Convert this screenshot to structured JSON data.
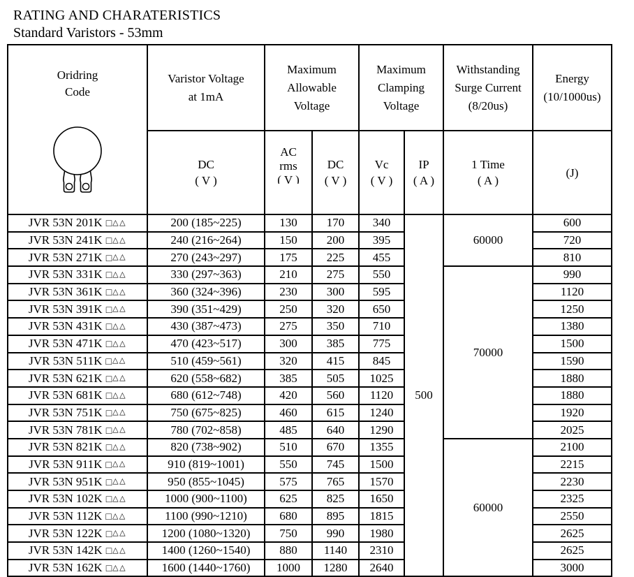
{
  "page": {
    "title": "RATING AND CHARATERISTICS",
    "subtitle": "Standard Varistors - 53mm"
  },
  "table": {
    "header": {
      "ordering_code": "Oridring\nCode",
      "varistor_voltage": "Varistor Voltage\nat 1mA",
      "max_allowable": "Maximum\nAllowable\nVoltage",
      "max_clamping": "Maximum\nClamping\nVoltage",
      "surge": "Withstanding\nSurge Current\n(8/20us)",
      "energy": "Energy\n(10/1000us)",
      "sub_dc1": "DC\n( V )",
      "sub_ac": "AC\nrms\n( V )",
      "sub_dc2": "DC\n( V )",
      "sub_vc": "Vc\n( V )",
      "sub_ip": "IP\n( A )",
      "sub_time": "1 Time\n( A )",
      "sub_j": "(J)"
    },
    "icon": "varistor-disc-icon",
    "code_suffix": {
      "square": "□",
      "triangles": "△△"
    },
    "rows": [
      {
        "code": "JVR 53N 201K",
        "voltage": "200 (185~225)",
        "ac": "130",
        "dc": "170",
        "vc": "340",
        "energy": "600"
      },
      {
        "code": "JVR 53N 241K",
        "voltage": "240 (216~264)",
        "ac": "150",
        "dc": "200",
        "vc": "395",
        "energy": "720"
      },
      {
        "code": "JVR 53N 271K",
        "voltage": "270 (243~297)",
        "ac": "175",
        "dc": "225",
        "vc": "455",
        "energy": "810"
      },
      {
        "code": "JVR 53N 331K",
        "voltage": "330 (297~363)",
        "ac": "210",
        "dc": "275",
        "vc": "550",
        "energy": "990"
      },
      {
        "code": "JVR 53N 361K",
        "voltage": "360 (324~396)",
        "ac": "230",
        "dc": "300",
        "vc": "595",
        "energy": "1120"
      },
      {
        "code": "JVR 53N 391K",
        "voltage": "390 (351~429)",
        "ac": "250",
        "dc": "320",
        "vc": "650",
        "energy": "1250"
      },
      {
        "code": "JVR 53N 431K",
        "voltage": "430 (387~473)",
        "ac": "275",
        "dc": "350",
        "vc": "710",
        "energy": "1380"
      },
      {
        "code": "JVR 53N 471K",
        "voltage": "470 (423~517)",
        "ac": "300",
        "dc": "385",
        "vc": "775",
        "energy": "1500"
      },
      {
        "code": "JVR 53N 511K",
        "voltage": "510 (459~561)",
        "ac": "320",
        "dc": "415",
        "vc": "845",
        "energy": "1590"
      },
      {
        "code": "JVR 53N 621K",
        "voltage": "620 (558~682)",
        "ac": "385",
        "dc": "505",
        "vc": "1025",
        "energy": "1880"
      },
      {
        "code": "JVR 53N 681K",
        "voltage": "680 (612~748)",
        "ac": "420",
        "dc": "560",
        "vc": "1120",
        "energy": "1880"
      },
      {
        "code": "JVR 53N 751K",
        "voltage": "750 (675~825)",
        "ac": "460",
        "dc": "615",
        "vc": "1240",
        "energy": "1920"
      },
      {
        "code": "JVR 53N 781K",
        "voltage": "780 (702~858)",
        "ac": "485",
        "dc": "640",
        "vc": "1290",
        "energy": "2025"
      },
      {
        "code": "JVR 53N 821K",
        "voltage": "820 (738~902)",
        "ac": "510",
        "dc": "670",
        "vc": "1355",
        "energy": "2100"
      },
      {
        "code": "JVR 53N 911K",
        "voltage": "910 (819~1001)",
        "ac": "550",
        "dc": "745",
        "vc": "1500",
        "energy": "2215"
      },
      {
        "code": "JVR 53N 951K",
        "voltage": "950 (855~1045)",
        "ac": "575",
        "dc": "765",
        "vc": "1570",
        "energy": "2230"
      },
      {
        "code": "JVR 53N 102K",
        "voltage": "1000 (900~1100)",
        "ac": "625",
        "dc": "825",
        "vc": "1650",
        "energy": "2325"
      },
      {
        "code": "JVR 53N 112K",
        "voltage": "1100 (990~1210)",
        "ac": "680",
        "dc": "895",
        "vc": "1815",
        "energy": "2550"
      },
      {
        "code": "JVR 53N 122K",
        "voltage": "1200 (1080~1320)",
        "ac": "750",
        "dc": "990",
        "vc": "1980",
        "energy": "2625"
      },
      {
        "code": "JVR 53N 142K",
        "voltage": "1400 (1260~1540)",
        "ac": "880",
        "dc": "1140",
        "vc": "2310",
        "energy": "2625"
      },
      {
        "code": "JVR 53N 162K",
        "voltage": "1600 (1440~1760)",
        "ac": "1000",
        "dc": "1280",
        "vc": "2640",
        "energy": "3000"
      }
    ],
    "merged": {
      "ip": "500",
      "surge_groups": [
        {
          "label": "60000",
          "rows": 3
        },
        {
          "label": "70000",
          "rows": 10
        },
        {
          "label": "60000",
          "rows": 8
        }
      ]
    }
  }
}
